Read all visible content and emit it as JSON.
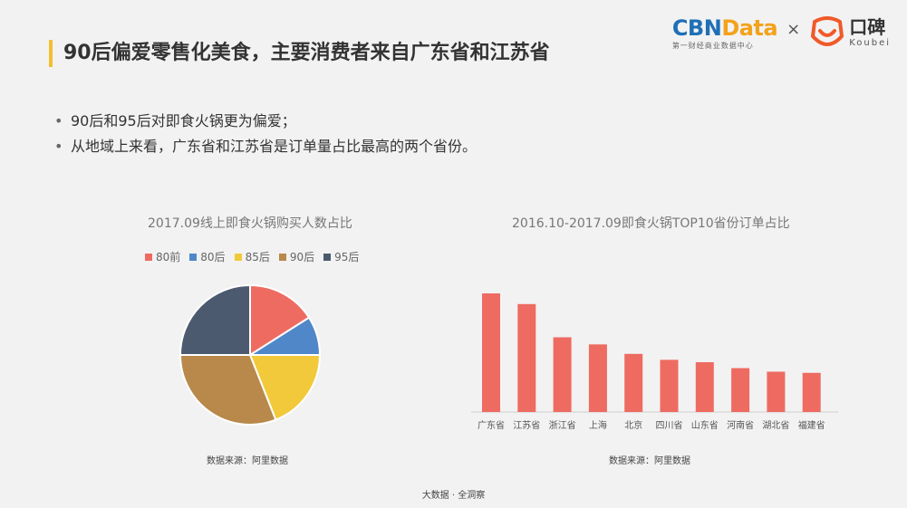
{
  "header": {
    "title": "90后偏爱零售化美食，主要消费者来自广东省和江苏省",
    "accent_color": "#f3c02f"
  },
  "logos": {
    "cbn_part1": "CBN",
    "cbn_part2": "Data",
    "cbn_sub": "第一财经商业数据中心",
    "times": "×",
    "koubei_cn": "口碑",
    "koubei_en": "Koubei",
    "koubei_icon": "koubei-smile-icon"
  },
  "bullets": [
    "90后和95后对即食火锅更为偏爱；",
    "从地域上来看，广东省和江苏省是订单量占比最高的两个省份。"
  ],
  "bullet_marker": "•",
  "chart_data": [
    {
      "type": "pie",
      "title": "2017.09线上即食火锅购买人数占比",
      "legend_position": "top",
      "categories": [
        "80前",
        "80后",
        "85后",
        "90后",
        "95后"
      ],
      "values": [
        16,
        9,
        19,
        31,
        25
      ],
      "colors": [
        "#ee6b62",
        "#4f87c9",
        "#f1c93b",
        "#b8894a",
        "#4b5a6e"
      ],
      "source": "数据来源：阿里数据"
    },
    {
      "type": "bar",
      "title": "2016.10-2017.09即食火锅TOP10省份订单占比",
      "categories": [
        "广东省",
        "江苏省",
        "浙江省",
        "上海",
        "北京",
        "四川省",
        "山东省",
        "河南省",
        "湖北省",
        "福建省"
      ],
      "values": [
        100,
        91,
        63,
        57,
        49,
        44,
        42,
        37,
        34,
        33
      ],
      "color": "#ee6b62",
      "ylim": [
        0,
        100
      ],
      "grid": false,
      "source": "数据来源：阿里数据"
    }
  ],
  "footer": "大数据 · 全洞察"
}
